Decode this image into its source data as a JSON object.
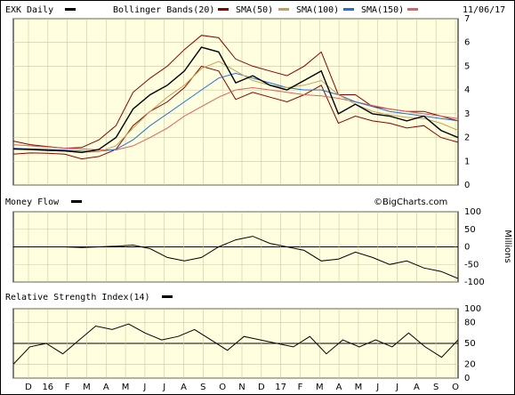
{
  "header": {
    "symbol": "EXK",
    "period": "Daily",
    "bollinger": "Bollinger Bands(20)",
    "sma50": "SMA(50)",
    "sma100": "SMA(100)",
    "sma150": "SMA(150)",
    "date": "11/06/17"
  },
  "colors": {
    "background": "#ffffe0",
    "price": "#000000",
    "bollinger": "#8b0000",
    "sma50": "#c8a050",
    "sma100": "#1e70e0",
    "sma150": "#e06060"
  },
  "money_flow": {
    "label": "Money Flow",
    "units": "Millions",
    "watermark": "©BigCharts.com"
  },
  "rsi": {
    "label": "Relative Strength Index(14)"
  },
  "chart_data": [
    {
      "type": "line",
      "name": "price",
      "x_tick_labels": [
        "D",
        "16",
        "F",
        "M",
        "A",
        "M",
        "J",
        "J",
        "A",
        "S",
        "O",
        "N",
        "D",
        "17",
        "F",
        "M",
        "A",
        "M",
        "J",
        "J",
        "A",
        "S",
        "O"
      ],
      "y_tick_labels": [
        "0",
        "1",
        "2",
        "3",
        "4",
        "5",
        "6",
        "7"
      ],
      "ylim": [
        0,
        7
      ],
      "series": [
        {
          "name": "EXK",
          "values": [
            1.52,
            1.5,
            1.46,
            1.44,
            1.37,
            1.5,
            2.0,
            3.2,
            3.8,
            4.2,
            4.8,
            5.8,
            5.6,
            4.3,
            4.6,
            4.2,
            4.0,
            4.4,
            4.8,
            3.0,
            3.4,
            3.0,
            2.9,
            2.7,
            2.9,
            2.3,
            2.0
          ]
        },
        {
          "name": "SMA(50)",
          "values": [
            1.5,
            1.48,
            1.46,
            1.42,
            1.38,
            1.4,
            1.65,
            2.4,
            3.1,
            3.7,
            4.2,
            4.9,
            5.2,
            4.8,
            4.4,
            4.2,
            4.1,
            4.2,
            4.4,
            3.8,
            3.4,
            3.1,
            2.95,
            2.85,
            2.8,
            2.6,
            2.3
          ]
        },
        {
          "name": "SMA(100)",
          "values": [
            1.55,
            1.52,
            1.5,
            1.47,
            1.43,
            1.42,
            1.5,
            1.9,
            2.5,
            3.0,
            3.5,
            4.0,
            4.5,
            4.7,
            4.5,
            4.3,
            4.1,
            4.0,
            4.0,
            3.8,
            3.5,
            3.3,
            3.1,
            3.0,
            2.9,
            2.8,
            2.7
          ]
        },
        {
          "name": "SMA(150)",
          "values": [
            1.7,
            1.65,
            1.6,
            1.55,
            1.52,
            1.48,
            1.48,
            1.65,
            2.0,
            2.4,
            2.9,
            3.3,
            3.7,
            4.0,
            4.1,
            4.0,
            3.9,
            3.8,
            3.75,
            3.65,
            3.5,
            3.35,
            3.2,
            3.1,
            3.0,
            2.9,
            2.8
          ]
        }
      ],
      "bollinger_upper": [
        1.85,
        1.7,
        1.62,
        1.55,
        1.58,
        1.9,
        2.5,
        3.9,
        4.5,
        5.0,
        5.7,
        6.3,
        6.2,
        5.3,
        5.0,
        4.8,
        4.6,
        5.0,
        5.6,
        3.8,
        3.8,
        3.3,
        3.2,
        3.1,
        3.1,
        2.9,
        2.7
      ],
      "bollinger_lower": [
        1.3,
        1.35,
        1.34,
        1.3,
        1.1,
        1.2,
        1.5,
        2.5,
        3.1,
        3.5,
        4.1,
        5.0,
        4.8,
        3.6,
        3.9,
        3.7,
        3.5,
        3.8,
        4.2,
        2.6,
        2.9,
        2.7,
        2.6,
        2.4,
        2.5,
        2.0,
        1.8
      ]
    },
    {
      "type": "line",
      "name": "money_flow",
      "ylabel": "Millions",
      "y_tick_labels": [
        "100",
        "50",
        "0",
        "-50",
        "-100"
      ],
      "ylim": [
        -100,
        100
      ],
      "series": [
        {
          "name": "Money Flow",
          "values": [
            0,
            0,
            0,
            0,
            -2,
            0,
            2,
            5,
            -5,
            -30,
            -40,
            -30,
            0,
            20,
            30,
            10,
            0,
            -10,
            -40,
            -35,
            -15,
            -30,
            -50,
            -40,
            -60,
            -70,
            -90
          ]
        }
      ]
    },
    {
      "type": "line",
      "name": "rsi",
      "y_tick_labels": [
        "100",
        "80",
        "50",
        "20",
        "0"
      ],
      "ylim": [
        0,
        100
      ],
      "series": [
        {
          "name": "RSI",
          "values": [
            20,
            45,
            50,
            35,
            55,
            75,
            70,
            78,
            65,
            55,
            60,
            70,
            55,
            40,
            60,
            55,
            50,
            45,
            60,
            35,
            55,
            45,
            55,
            45,
            65,
            45,
            30,
            55
          ]
        }
      ]
    }
  ]
}
